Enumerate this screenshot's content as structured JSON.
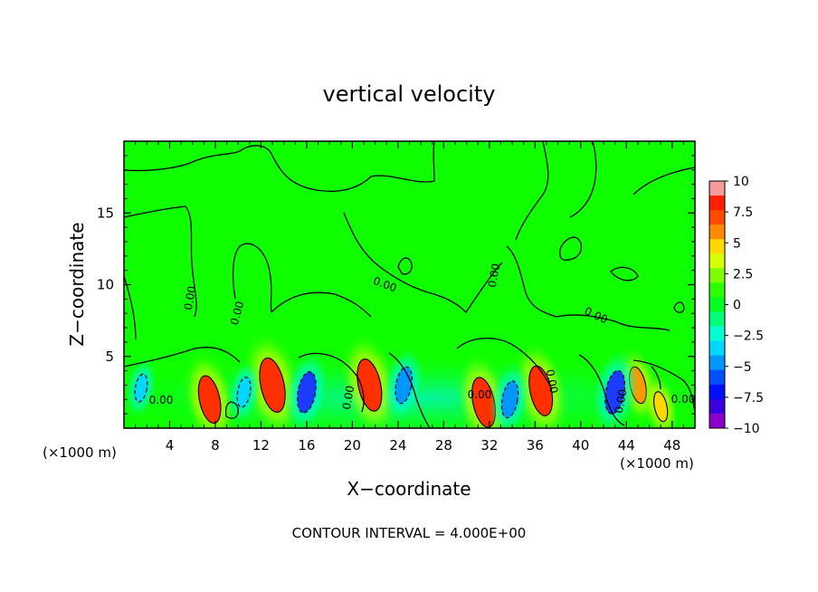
{
  "chart_data": {
    "type": "heatmap",
    "title": "vertical velocity",
    "xlabel": "X−coordinate",
    "ylabel": "Z−coordinate",
    "x_unit_left": "(×1000 m)",
    "x_unit_right": "(×1000 m)",
    "footer": "CONTOUR INTERVAL = 4.000E+00",
    "xlim": [
      0,
      50
    ],
    "ylim": [
      0,
      20
    ],
    "x_ticks": [
      "4",
      "8",
      "12",
      "16",
      "20",
      "24",
      "28",
      "32",
      "36",
      "40",
      "44",
      "48"
    ],
    "y_ticks": [
      "5",
      "10",
      "15"
    ],
    "contour_labels": [
      "0.00",
      "0.00",
      "0.00",
      "0.00",
      "0.00",
      "0.00",
      "0.00",
      "0.00",
      "0.00",
      "0.00",
      "0.00"
    ],
    "colorbar": {
      "ticks": [
        "10",
        "7.5",
        "5",
        "2.5",
        "0",
        "−2.5",
        "−5",
        "−7.5",
        "−10"
      ],
      "min": -10,
      "max": 10,
      "colors": [
        "#f79a9a",
        "#ff2000",
        "#ff4a00",
        "#ff8a00",
        "#ffd800",
        "#d6ff00",
        "#7dff00",
        "#2cff00",
        "#00ff20",
        "#00ff7a",
        "#00ffd2",
        "#00d8ff",
        "#0096ff",
        "#0050ff",
        "#0010ff",
        "#3a00e0",
        "#8a00c8"
      ]
    },
    "features": [
      {
        "x": 7.5,
        "z": 2.0,
        "w": 7.5
      },
      {
        "x": 13.0,
        "z": 3.0,
        "w": 9.0
      },
      {
        "x": 21.5,
        "z": 3.0,
        "w": 8.5
      },
      {
        "x": 31.5,
        "z": 1.8,
        "w": 8.0
      },
      {
        "x": 36.5,
        "z": 2.6,
        "w": 8.0
      },
      {
        "x": 45.0,
        "z": 3.0,
        "w": 5.0
      },
      {
        "x": 47.0,
        "z": 1.5,
        "w": 3.5
      },
      {
        "x": 16.0,
        "z": 2.5,
        "w": -6.0
      },
      {
        "x": 24.5,
        "z": 3.0,
        "w": -5.0
      },
      {
        "x": 33.8,
        "z": 2.0,
        "w": -5.0
      },
      {
        "x": 43.0,
        "z": 2.5,
        "w": -6.5
      },
      {
        "x": 1.5,
        "z": 2.8,
        "w": -3.0
      },
      {
        "x": 10.5,
        "z": 2.5,
        "w": -3.5
      }
    ]
  }
}
